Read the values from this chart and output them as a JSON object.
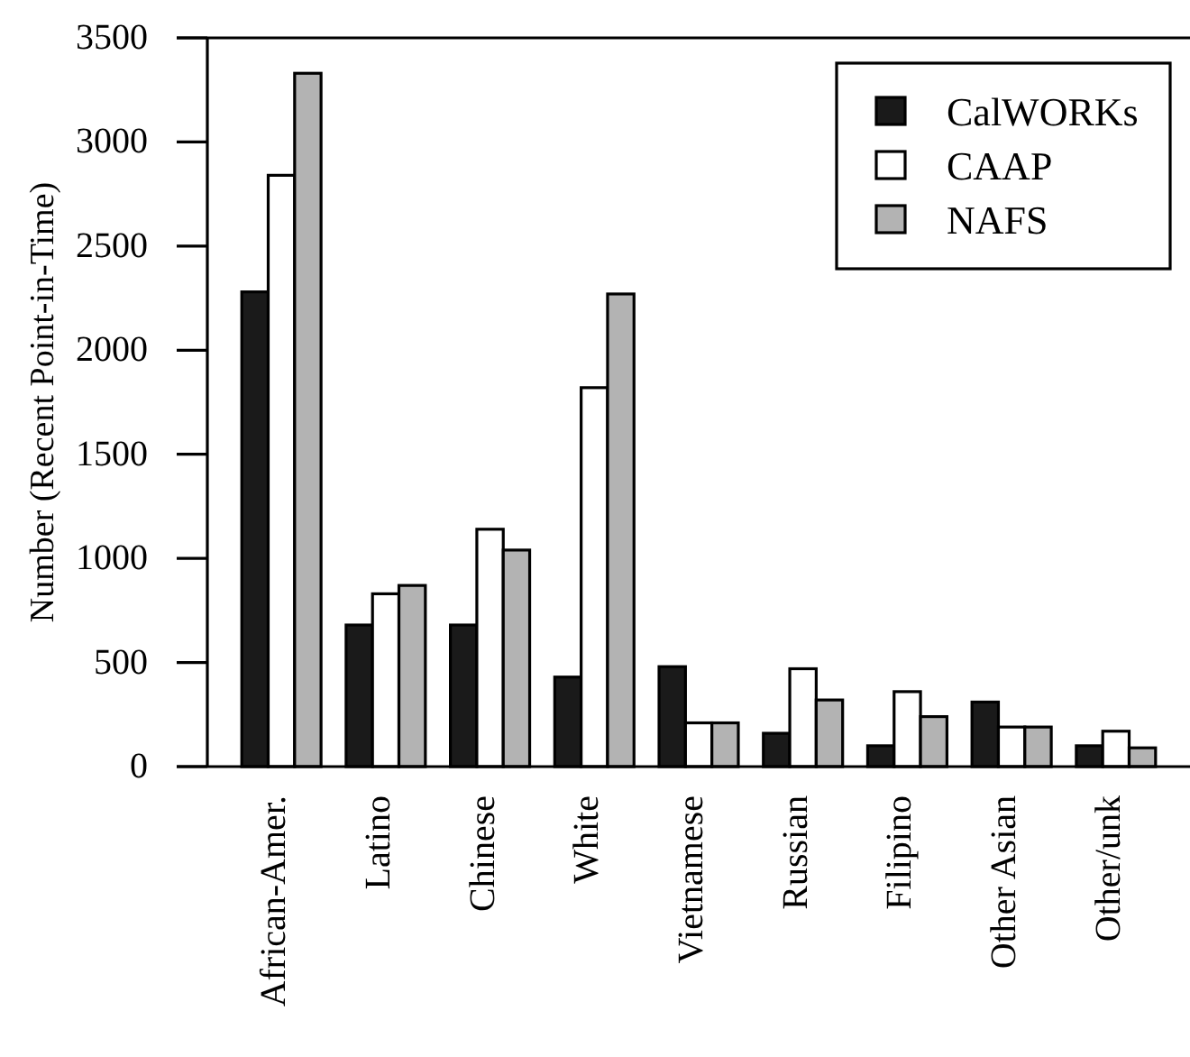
{
  "chart_data": {
    "type": "bar",
    "ylabel": "Number (Recent Point-in-Time)",
    "categories": [
      "African-Amer.",
      "Latino",
      "Chinese",
      "White",
      "Vietnamese",
      "Russian",
      "Filipino",
      "Other Asian",
      "Other/unk"
    ],
    "series": [
      {
        "name": "CalWORKs",
        "color": "#1a1a1a",
        "values": [
          2280,
          680,
          680,
          430,
          480,
          160,
          100,
          310,
          100
        ]
      },
      {
        "name": "CAAP",
        "color": "#ffffff",
        "values": [
          2840,
          830,
          1140,
          1820,
          210,
          470,
          360,
          190,
          170
        ]
      },
      {
        "name": "NAFS",
        "color": "#b3b3b3",
        "values": [
          3330,
          870,
          1040,
          2270,
          210,
          320,
          240,
          190,
          90
        ]
      }
    ],
    "ylim": [
      0,
      3500
    ],
    "yticks": [
      0,
      500,
      1000,
      1500,
      2000,
      2500,
      3000,
      3500
    ],
    "legend": "top right"
  }
}
